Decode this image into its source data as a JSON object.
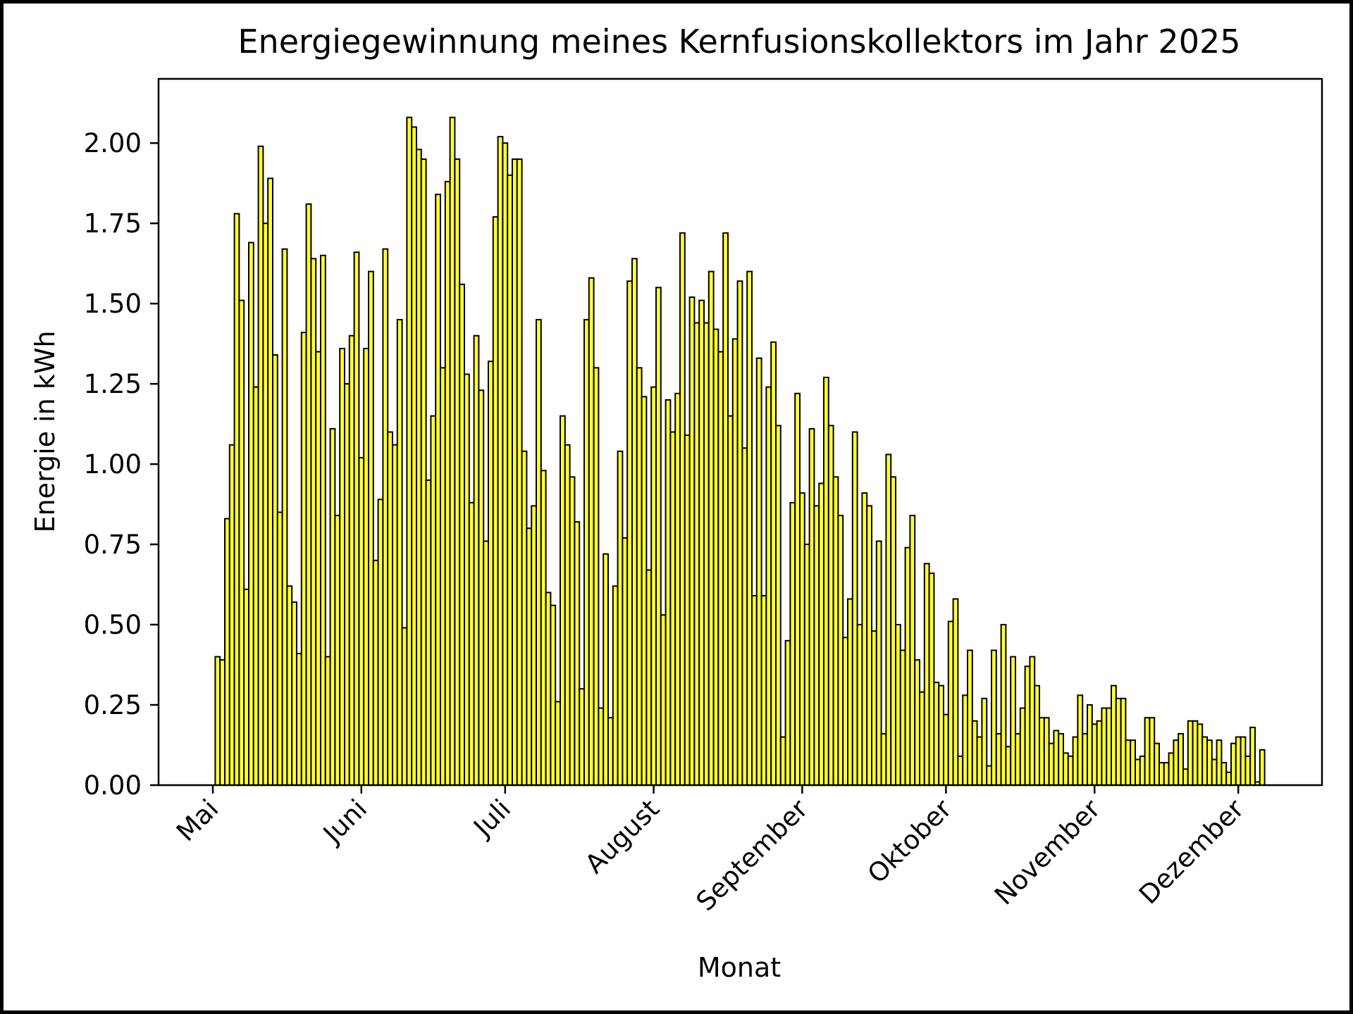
{
  "chart_data": {
    "type": "bar",
    "title": "Energiegewinnung meines Kernfusionskollektors im Jahr 2025",
    "xlabel": "Monat",
    "ylabel": "Energie in kWh",
    "ylim": [
      0,
      2.2
    ],
    "yticks": [
      "0.00",
      "0.25",
      "0.50",
      "0.75",
      "1.00",
      "1.25",
      "1.50",
      "1.75",
      "2.00"
    ],
    "xticks": [
      "Mai",
      "Juni",
      "Juli",
      "August",
      "September",
      "Oktober",
      "November",
      "Dezember"
    ],
    "x_start": "2025-05-01",
    "x_end": "2025-12-04",
    "grid": false,
    "bar_color": "#ffff33",
    "edge_color": "#000000",
    "values": [
      0.0,
      0.4,
      0.39,
      0.83,
      1.06,
      1.78,
      1.51,
      0.61,
      1.69,
      1.24,
      1.99,
      1.75,
      1.89,
      1.34,
      0.85,
      1.67,
      0.62,
      0.57,
      0.41,
      1.41,
      1.81,
      1.64,
      1.35,
      1.65,
      0.4,
      1.11,
      0.84,
      1.36,
      1.25,
      1.4,
      1.66,
      1.02,
      1.36,
      1.6,
      0.7,
      0.89,
      1.67,
      1.1,
      1.06,
      1.45,
      0.49,
      2.08,
      2.05,
      1.98,
      1.95,
      0.95,
      1.15,
      1.84,
      1.3,
      1.88,
      2.08,
      1.95,
      1.56,
      1.28,
      0.88,
      1.4,
      1.23,
      0.76,
      1.32,
      1.77,
      2.02,
      2.0,
      1.9,
      1.95,
      1.95,
      1.04,
      0.8,
      0.87,
      1.45,
      0.98,
      0.6,
      0.56,
      0.26,
      1.15,
      1.06,
      0.96,
      0.82,
      0.3,
      1.45,
      1.58,
      1.3,
      0.24,
      0.72,
      0.21,
      0.62,
      1.04,
      0.77,
      1.57,
      1.64,
      1.3,
      1.21,
      0.67,
      1.24,
      1.55,
      0.53,
      1.2,
      1.1,
      1.22,
      1.72,
      1.09,
      1.52,
      1.44,
      1.51,
      1.44,
      1.6,
      1.42,
      1.35,
      1.72,
      1.15,
      1.39,
      1.57,
      1.05,
      1.6,
      0.59,
      1.33,
      0.59,
      1.24,
      1.38,
      1.12,
      0.15,
      0.45,
      0.88,
      1.22,
      0.91,
      0.75,
      1.11,
      0.87,
      0.94,
      1.27,
      1.12,
      0.96,
      0.84,
      0.46,
      0.58,
      1.1,
      0.5,
      0.91,
      0.87,
      0.48,
      0.76,
      0.16,
      1.03,
      0.96,
      0.5,
      0.42,
      0.74,
      0.84,
      0.39,
      0.29,
      0.69,
      0.66,
      0.32,
      0.31,
      0.22,
      0.51,
      0.58,
      0.09,
      0.28,
      0.42,
      0.2,
      0.15,
      0.27,
      0.06,
      0.42,
      0.16,
      0.5,
      0.12,
      0.4,
      0.16,
      0.24,
      0.37,
      0.4,
      0.31,
      0.21,
      0.21,
      0.13,
      0.17,
      0.16,
      0.1,
      0.09,
      0.15,
      0.28,
      0.16,
      0.25,
      0.19,
      0.2,
      0.24,
      0.24,
      0.31,
      0.27,
      0.27,
      0.14,
      0.14,
      0.08,
      0.09,
      0.21,
      0.21,
      0.13,
      0.07,
      0.07,
      0.1,
      0.14,
      0.16,
      0.05,
      0.2,
      0.2,
      0.19,
      0.15,
      0.14,
      0.08,
      0.14,
      0.07,
      0.04,
      0.13,
      0.15,
      0.15,
      0.09,
      0.18,
      0.01,
      0.11
    ]
  }
}
